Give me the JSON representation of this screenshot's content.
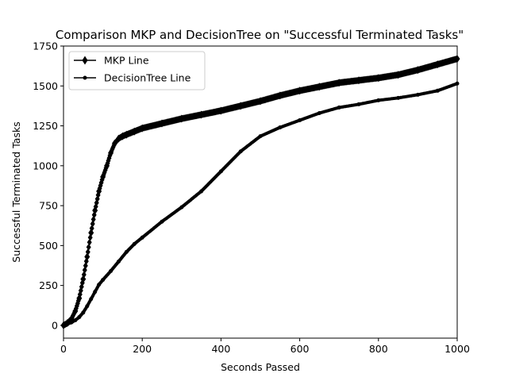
{
  "chart_data": {
    "type": "line",
    "title": "Comparison MKP and DecisionTree on \"Successful Terminated Tasks\"",
    "xlabel": "Seconds Passed",
    "ylabel": "Successful Terminated Tasks",
    "xlim": [
      0,
      1000
    ],
    "ylim": [
      -80,
      1750
    ],
    "xticks": [
      0,
      200,
      400,
      600,
      800,
      1000
    ],
    "yticks": [
      0,
      250,
      500,
      750,
      1000,
      1250,
      1500,
      1750
    ],
    "grid": false,
    "legend_position": "top-left",
    "series": [
      {
        "name": "MKP Line",
        "color": "#000000",
        "marker": "diamond",
        "x": [
          0,
          10,
          20,
          30,
          40,
          50,
          60,
          70,
          80,
          90,
          100,
          110,
          120,
          130,
          140,
          150,
          160,
          180,
          200,
          250,
          300,
          350,
          400,
          450,
          500,
          550,
          600,
          650,
          700,
          750,
          800,
          850,
          900,
          950,
          1000
        ],
        "y": [
          0,
          15,
          40,
          90,
          170,
          290,
          430,
          580,
          720,
          840,
          930,
          1000,
          1080,
          1140,
          1170,
          1185,
          1195,
          1215,
          1235,
          1265,
          1295,
          1320,
          1345,
          1375,
          1405,
          1440,
          1470,
          1495,
          1520,
          1535,
          1550,
          1570,
          1600,
          1635,
          1670
        ]
      },
      {
        "name": "DecisionTree Line",
        "color": "#000000",
        "marker": "point",
        "x": [
          0,
          10,
          20,
          30,
          40,
          50,
          60,
          70,
          80,
          90,
          100,
          120,
          140,
          160,
          180,
          200,
          250,
          300,
          350,
          400,
          450,
          500,
          550,
          600,
          650,
          700,
          750,
          800,
          850,
          900,
          950,
          1000
        ],
        "y": [
          0,
          8,
          18,
          32,
          52,
          80,
          120,
          165,
          210,
          255,
          285,
          340,
          400,
          460,
          510,
          550,
          650,
          740,
          840,
          965,
          1090,
          1185,
          1240,
          1285,
          1330,
          1365,
          1385,
          1410,
          1425,
          1445,
          1470,
          1515
        ]
      }
    ]
  }
}
